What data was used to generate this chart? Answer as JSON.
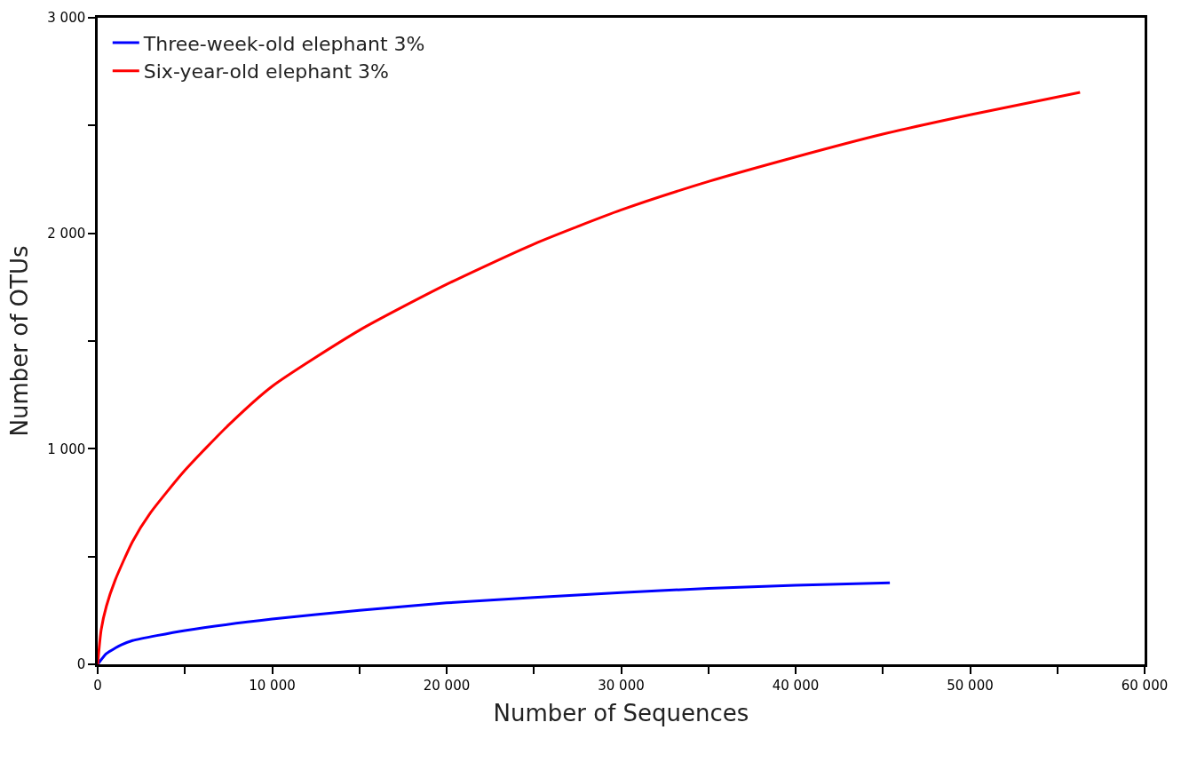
{
  "chart_data": {
    "type": "line",
    "xlabel": "Number of Sequences",
    "ylabel": "Number of OTUs",
    "xlim": [
      0,
      60000
    ],
    "ylim": [
      0,
      3000
    ],
    "xticks": [
      0,
      {
        "value": 5000,
        "label": null
      },
      {
        "value": 10000,
        "label": "10 000"
      },
      {
        "value": 15000,
        "label": null
      },
      {
        "value": 20000,
        "label": "20 000"
      },
      {
        "value": 25000,
        "label": null
      },
      {
        "value": 30000,
        "label": "30 000"
      },
      {
        "value": 35000,
        "label": null
      },
      {
        "value": 40000,
        "label": "40 000"
      },
      {
        "value": 45000,
        "label": null
      },
      {
        "value": 50000,
        "label": "50 000"
      },
      {
        "value": 55000,
        "label": null
      },
      {
        "value": 60000,
        "label": "60 000"
      }
    ],
    "yticks": [
      0,
      {
        "value": 500,
        "label": null
      },
      {
        "value": 1000,
        "label": "1 000"
      },
      {
        "value": 1500,
        "label": null
      },
      {
        "value": 2000,
        "label": "2 000"
      },
      {
        "value": 2500,
        "label": null
      },
      {
        "value": 3000,
        "label": "3 000"
      }
    ],
    "legend": "top left",
    "marker": "none",
    "line_style": "solid",
    "series": [
      {
        "name": "Three-week-old elephant 3%",
        "color": "#0000ff",
        "x": [
          0,
          500,
          1000,
          1350,
          2000,
          5000,
          10000,
          15000,
          20000,
          25000,
          30000,
          35000,
          40000,
          45400
        ],
        "values": [
          0,
          50,
          75,
          90,
          110,
          157,
          210,
          250,
          285,
          310,
          333,
          352,
          367,
          378
        ]
      },
      {
        "name": "Six-year-old elephant 3%",
        "color": "#ff0000",
        "x": [
          0,
          200,
          500,
          1000,
          2000,
          3000,
          5000,
          7500,
          10000,
          15000,
          20000,
          25000,
          30000,
          35000,
          40000,
          45000,
          50000,
          56300
        ],
        "values": [
          0,
          160,
          270,
          390,
          570,
          700,
          900,
          1110,
          1290,
          1550,
          1763,
          1950,
          2108,
          2240,
          2354,
          2460,
          2550,
          2654
        ]
      }
    ]
  }
}
